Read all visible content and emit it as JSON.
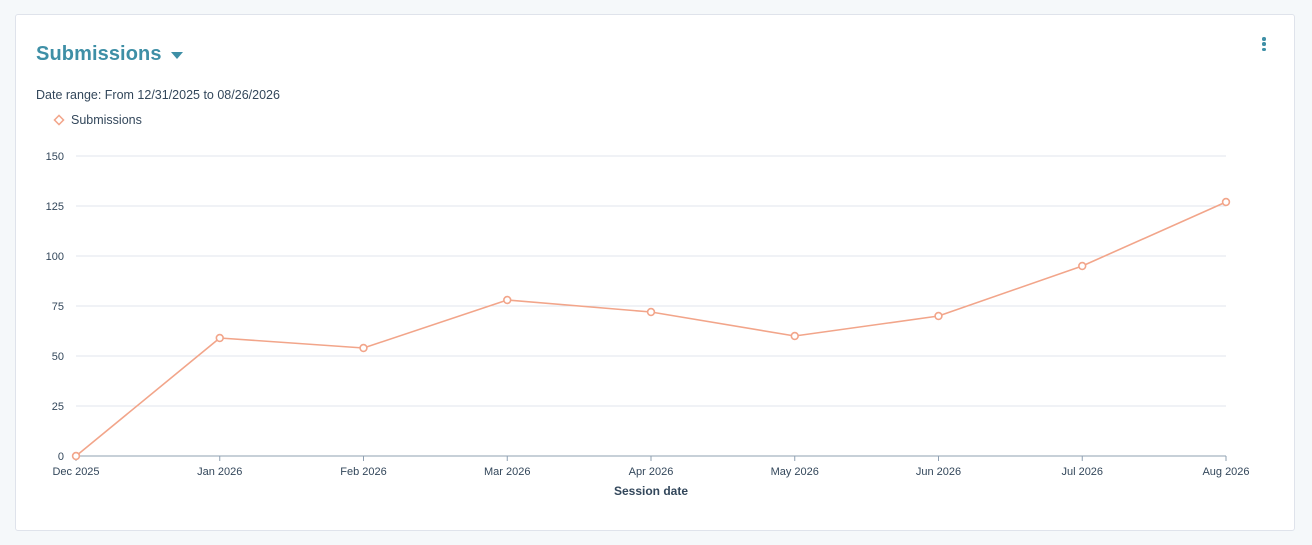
{
  "card": {
    "title": "Submissions",
    "date_range": "Date range: From 12/31/2025 to 08/26/2026",
    "legend_label": "Submissions"
  },
  "colors": {
    "accent": "#3e8fa6",
    "series": "#f2a58a",
    "grid": "#e1e6ec",
    "axis": "#8fa0b2"
  },
  "chart_data": {
    "type": "line",
    "xlabel": "Session date",
    "ylabel": "",
    "ylim": [
      0,
      150
    ],
    "yticks": [
      "0",
      "25",
      "50",
      "75",
      "100",
      "125",
      "150"
    ],
    "categories": [
      "Dec 2025",
      "Jan 2026",
      "Feb 2026",
      "Mar 2026",
      "Apr 2026",
      "May 2026",
      "Jun 2026",
      "Jul 2026",
      "Aug 2026"
    ],
    "series": [
      {
        "name": "Submissions",
        "values": [
          0,
          59,
          54,
          78,
          72,
          60,
          70,
          95,
          127
        ]
      }
    ],
    "grid": true,
    "legend_position": "top-left"
  }
}
